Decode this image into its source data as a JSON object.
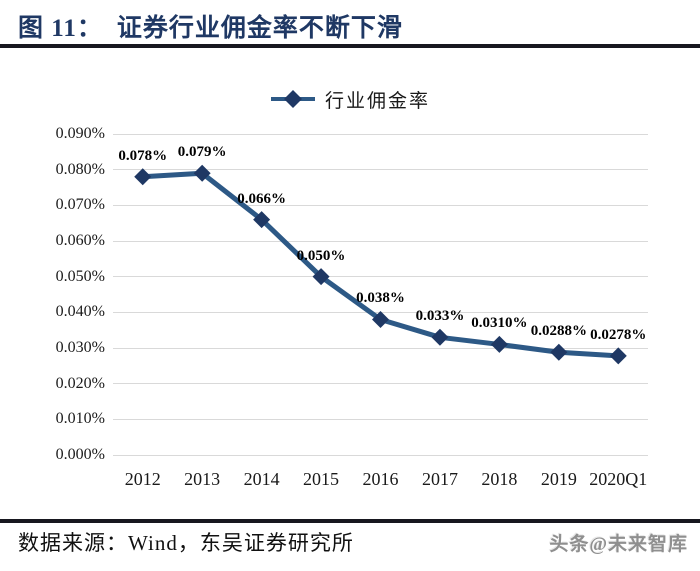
{
  "title": {
    "prefix": "图 11：",
    "text": "证券行业佣金率不断下滑"
  },
  "legend": {
    "label": "行业佣金率"
  },
  "footer": {
    "source": "数据来源：Wind，东吴证券研究所",
    "watermark": "头条@未来智库"
  },
  "colors": {
    "navy_title": "#1f3864",
    "line": "#2d5986",
    "marker": "#1f3864",
    "grid": "#d9d9d9",
    "rule": "#17171f",
    "data_label": "#000000",
    "watermark": "#8f8f8f"
  },
  "chart_data": {
    "type": "line",
    "title": "证券行业佣金率不断下滑",
    "categories": [
      "2012",
      "2013",
      "2014",
      "2015",
      "2016",
      "2017",
      "2018",
      "2019",
      "2020Q1"
    ],
    "series": [
      {
        "name": "行业佣金率",
        "values": [
          0.078,
          0.079,
          0.066,
          0.05,
          0.038,
          0.033,
          0.031,
          0.0288,
          0.0278
        ],
        "point_labels": [
          "0.078%",
          "0.079%",
          "0.066%",
          "0.050%",
          "0.038%",
          "0.033%",
          "0.0310%",
          "0.0288%",
          "0.0278%"
        ]
      }
    ],
    "xlabel": "",
    "ylabel": "",
    "ylim": [
      0,
      0.09
    ],
    "ytick_step": 0.01,
    "ytick_labels": [
      "0.000%",
      "0.010%",
      "0.020%",
      "0.030%",
      "0.040%",
      "0.050%",
      "0.060%",
      "0.070%",
      "0.080%",
      "0.090%"
    ],
    "grid": true,
    "legend_position": "top-center",
    "marker": "diamond",
    "unit": "percent"
  }
}
